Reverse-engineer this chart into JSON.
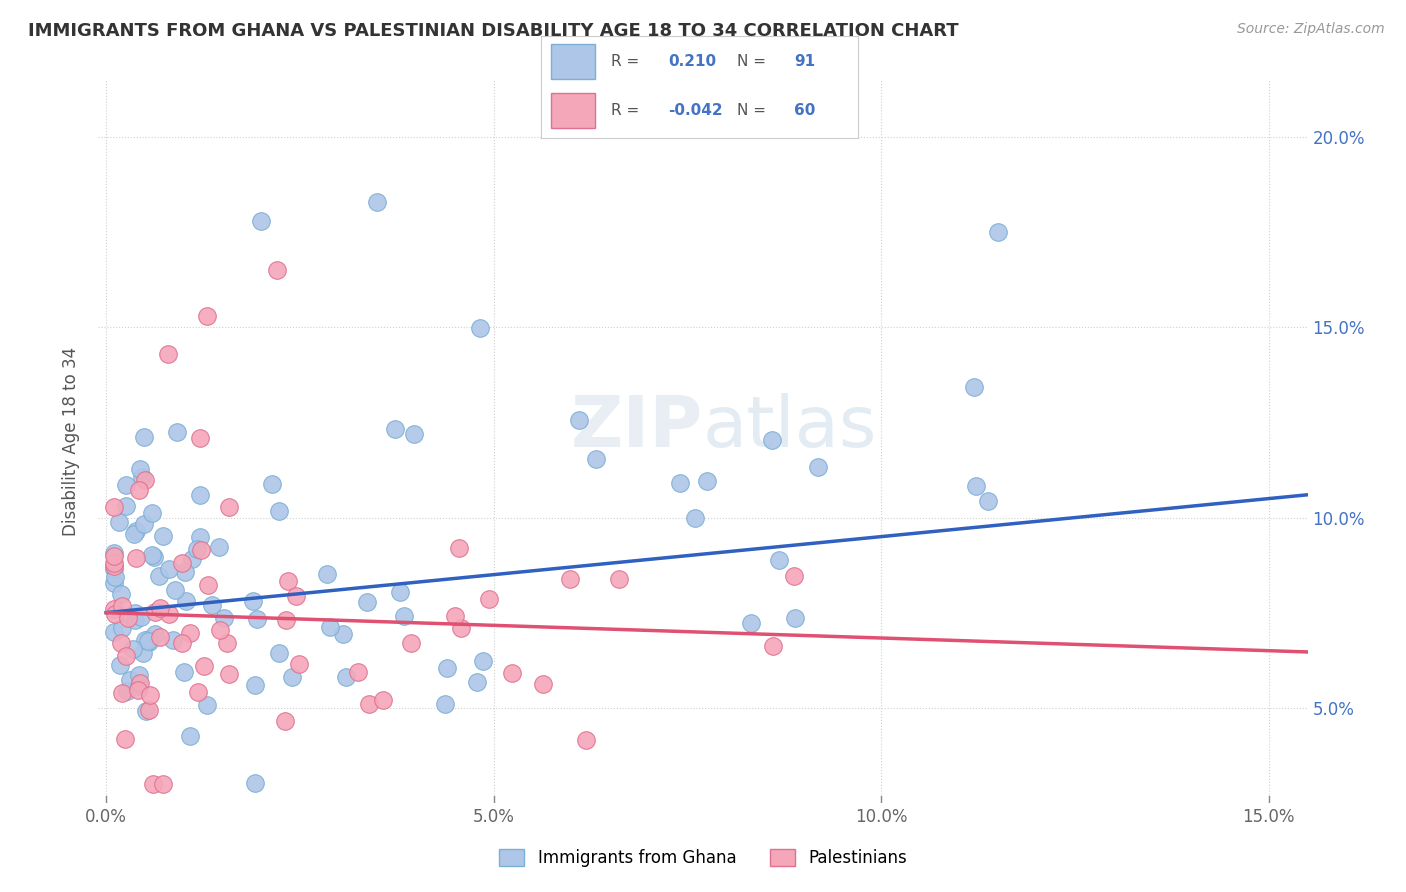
{
  "title": "IMMIGRANTS FROM GHANA VS PALESTINIAN DISABILITY AGE 18 TO 34 CORRELATION CHART",
  "source": "Source: ZipAtlas.com",
  "ylabel": "Disability Age 18 to 34",
  "xlim": [
    -0.001,
    0.155
  ],
  "ylim": [
    0.025,
    0.215
  ],
  "x_ticks": [
    0.0,
    0.05,
    0.1,
    0.15
  ],
  "x_tick_labels": [
    "0.0%",
    "5.0%",
    "10.0%",
    "15.0%"
  ],
  "y_ticks": [
    0.05,
    0.1,
    0.15,
    0.2
  ],
  "y_tick_labels": [
    "5.0%",
    "10.0%",
    "15.0%",
    "20.0%"
  ],
  "ghana_color": "#aec6e8",
  "ghana_edge": "#7bafd4",
  "palestinian_color": "#f4a7b9",
  "palestinian_edge": "#e07090",
  "trend_ghana_color": "#3060c0",
  "trend_palestinian_color": "#e05070",
  "watermark": "ZIPatlas",
  "background_color": "#ffffff",
  "grid_color": "#d0d0d0",
  "legend_r1": "0.210",
  "legend_n1": "91",
  "legend_r2": "-0.042",
  "legend_n2": "60",
  "legend_label1": "Immigrants from Ghana",
  "legend_label2": "Palestinians"
}
